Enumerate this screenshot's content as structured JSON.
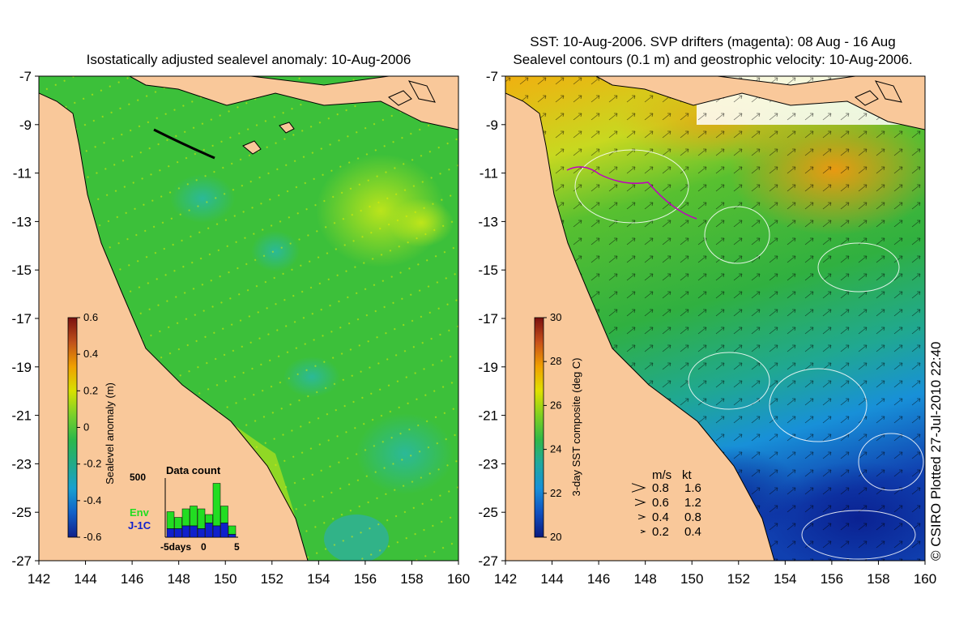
{
  "left_panel": {
    "title": "Isostatically adjusted sealevel anomaly: 10-Aug-2006",
    "colorbar": {
      "label": "Sealevel anomaly (m)",
      "ticks": [
        "0.6",
        "0.4",
        "0.2",
        "0",
        "-0.2",
        "-0.4",
        "-0.6"
      ],
      "colors": [
        "#7a1010",
        "#c0501a",
        "#f0a000",
        "#d8e000",
        "#7ad02a",
        "#2cb84a",
        "#22aa88",
        "#18a0d0",
        "#1060c8",
        "#10208a"
      ]
    },
    "data_count": {
      "title": "Data count",
      "ymax_label": "500",
      "x_labels": [
        "-5days",
        "0",
        "5"
      ],
      "legend_env": "Env",
      "legend_j1c": "J-1C",
      "env_color": "#22dd22",
      "j1c_color": "#1020cc",
      "bars_env": [
        0.45,
        0.35,
        0.5,
        0.55,
        0.5,
        0.4,
        0.95,
        0.55,
        0.2
      ],
      "bars_j1c": [
        0.15,
        0.15,
        0.2,
        0.2,
        0.15,
        0.25,
        0.2,
        0.25,
        0.05
      ]
    }
  },
  "right_panel": {
    "title_line1": "SST: 10-Aug-2006. SVP drifters (magenta): 08 Aug - 16 Aug",
    "title_line2": "Sealevel contours (0.1 m) and geostrophic velocity: 10-Aug-2006.",
    "colorbar": {
      "label": "3-day SST composite (deg C)",
      "ticks": [
        "30",
        "28",
        "26",
        "24",
        "22",
        "20"
      ],
      "colors": [
        "#7a1010",
        "#c8501a",
        "#f0a000",
        "#e0e000",
        "#80d020",
        "#30b848",
        "#20a8a0",
        "#1890d8",
        "#1050c0",
        "#0a1a80"
      ]
    },
    "velocity_legend": {
      "header_ms": "m/s",
      "header_kt": "kt",
      "rows": [
        {
          "ms": "0.8",
          "kt": "1.6"
        },
        {
          "ms": "0.6",
          "kt": "1.2"
        },
        {
          "ms": "0.4",
          "kt": "0.8"
        },
        {
          "ms": "0.2",
          "kt": "0.4"
        }
      ]
    },
    "credit": "© CSIRO Plotted 27-Jul-2010 22:40"
  },
  "axes": {
    "lat_labels": [
      "-7",
      "-9",
      "-11",
      "-13",
      "-15",
      "-17",
      "-19",
      "-21",
      "-23",
      "-25",
      "-27"
    ],
    "lon_labels": [
      "142",
      "144",
      "146",
      "148",
      "150",
      "152",
      "154",
      "156",
      "158",
      "160"
    ],
    "lat_range": [
      -27,
      -7
    ],
    "lon_range": [
      142,
      160
    ]
  },
  "colors": {
    "land": "#f9c89a",
    "ocean_left": "#3cc03a",
    "coast": "#000000"
  }
}
